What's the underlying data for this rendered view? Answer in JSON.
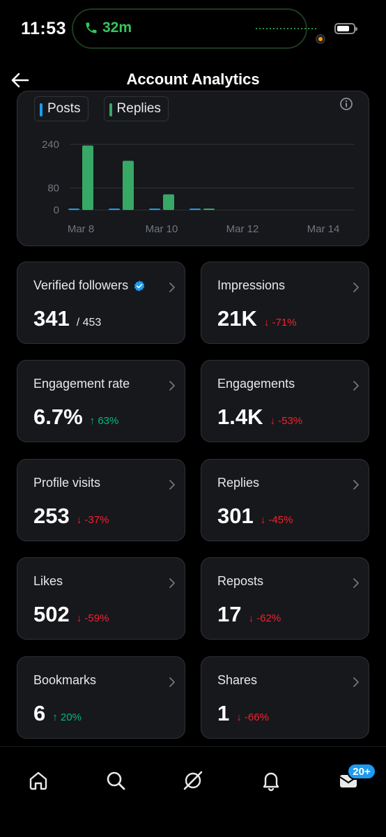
{
  "status_bar": {
    "time": "11:53",
    "call_duration": "32m",
    "battery_level": 0.75
  },
  "header": {
    "title": "Account Analytics",
    "back_icon": "arrow-left-icon"
  },
  "chart": {
    "legend": [
      {
        "label": "Posts",
        "color": "#1d9bf0"
      },
      {
        "label": "Replies",
        "color": "#38a866"
      }
    ]
  },
  "chart_data": {
    "type": "bar",
    "categories": [
      "Mar 8",
      "Mar 9",
      "Mar 10",
      "Mar 11",
      "Mar 12",
      "Mar 13",
      "Mar 14"
    ],
    "x_tick_labels": [
      "Mar 8",
      "Mar 10",
      "Mar 12",
      "Mar 14"
    ],
    "y_tick_labels": [
      "240",
      "80",
      "0"
    ],
    "y_ticks": [
      240,
      80,
      0
    ],
    "ylim": [
      0,
      240
    ],
    "grid": true,
    "legend_position": "top-left",
    "series": [
      {
        "name": "Posts",
        "color": "#1d9bf0",
        "values": [
          2,
          3,
          2,
          1,
          0,
          0,
          0
        ]
      },
      {
        "name": "Replies",
        "color": "#38a866",
        "values": [
          236,
          180,
          57,
          3,
          0,
          0,
          0
        ]
      }
    ]
  },
  "stats": [
    {
      "label": "Verified followers",
      "value": "341",
      "sub": "/ 453",
      "verified": true
    },
    {
      "label": "Impressions",
      "value": "21K",
      "change": "-71%",
      "direction": "down"
    },
    {
      "label": "Engagement rate",
      "value": "6.7%",
      "change": "63%",
      "direction": "up"
    },
    {
      "label": "Engagements",
      "value": "1.4K",
      "change": "-53%",
      "direction": "down"
    },
    {
      "label": "Profile visits",
      "value": "253",
      "change": "-37%",
      "direction": "down"
    },
    {
      "label": "Replies",
      "value": "301",
      "change": "-45%",
      "direction": "down"
    },
    {
      "label": "Likes",
      "value": "502",
      "change": "-59%",
      "direction": "down"
    },
    {
      "label": "Reposts",
      "value": "17",
      "change": "-62%",
      "direction": "down"
    },
    {
      "label": "Bookmarks",
      "value": "6",
      "change": "20%",
      "direction": "up"
    },
    {
      "label": "Shares",
      "value": "1",
      "change": "-66%",
      "direction": "down"
    }
  ],
  "bottom_nav": {
    "items": [
      "home-icon",
      "search-icon",
      "grok-icon",
      "notifications-icon",
      "messages-icon"
    ],
    "messages_badge": "20+"
  },
  "colors": {
    "background": "#000000",
    "card": "#16181c",
    "border": "#2f3336",
    "accent": "#1d9bf0",
    "up": "#00ba7c",
    "down": "#f4212e"
  }
}
